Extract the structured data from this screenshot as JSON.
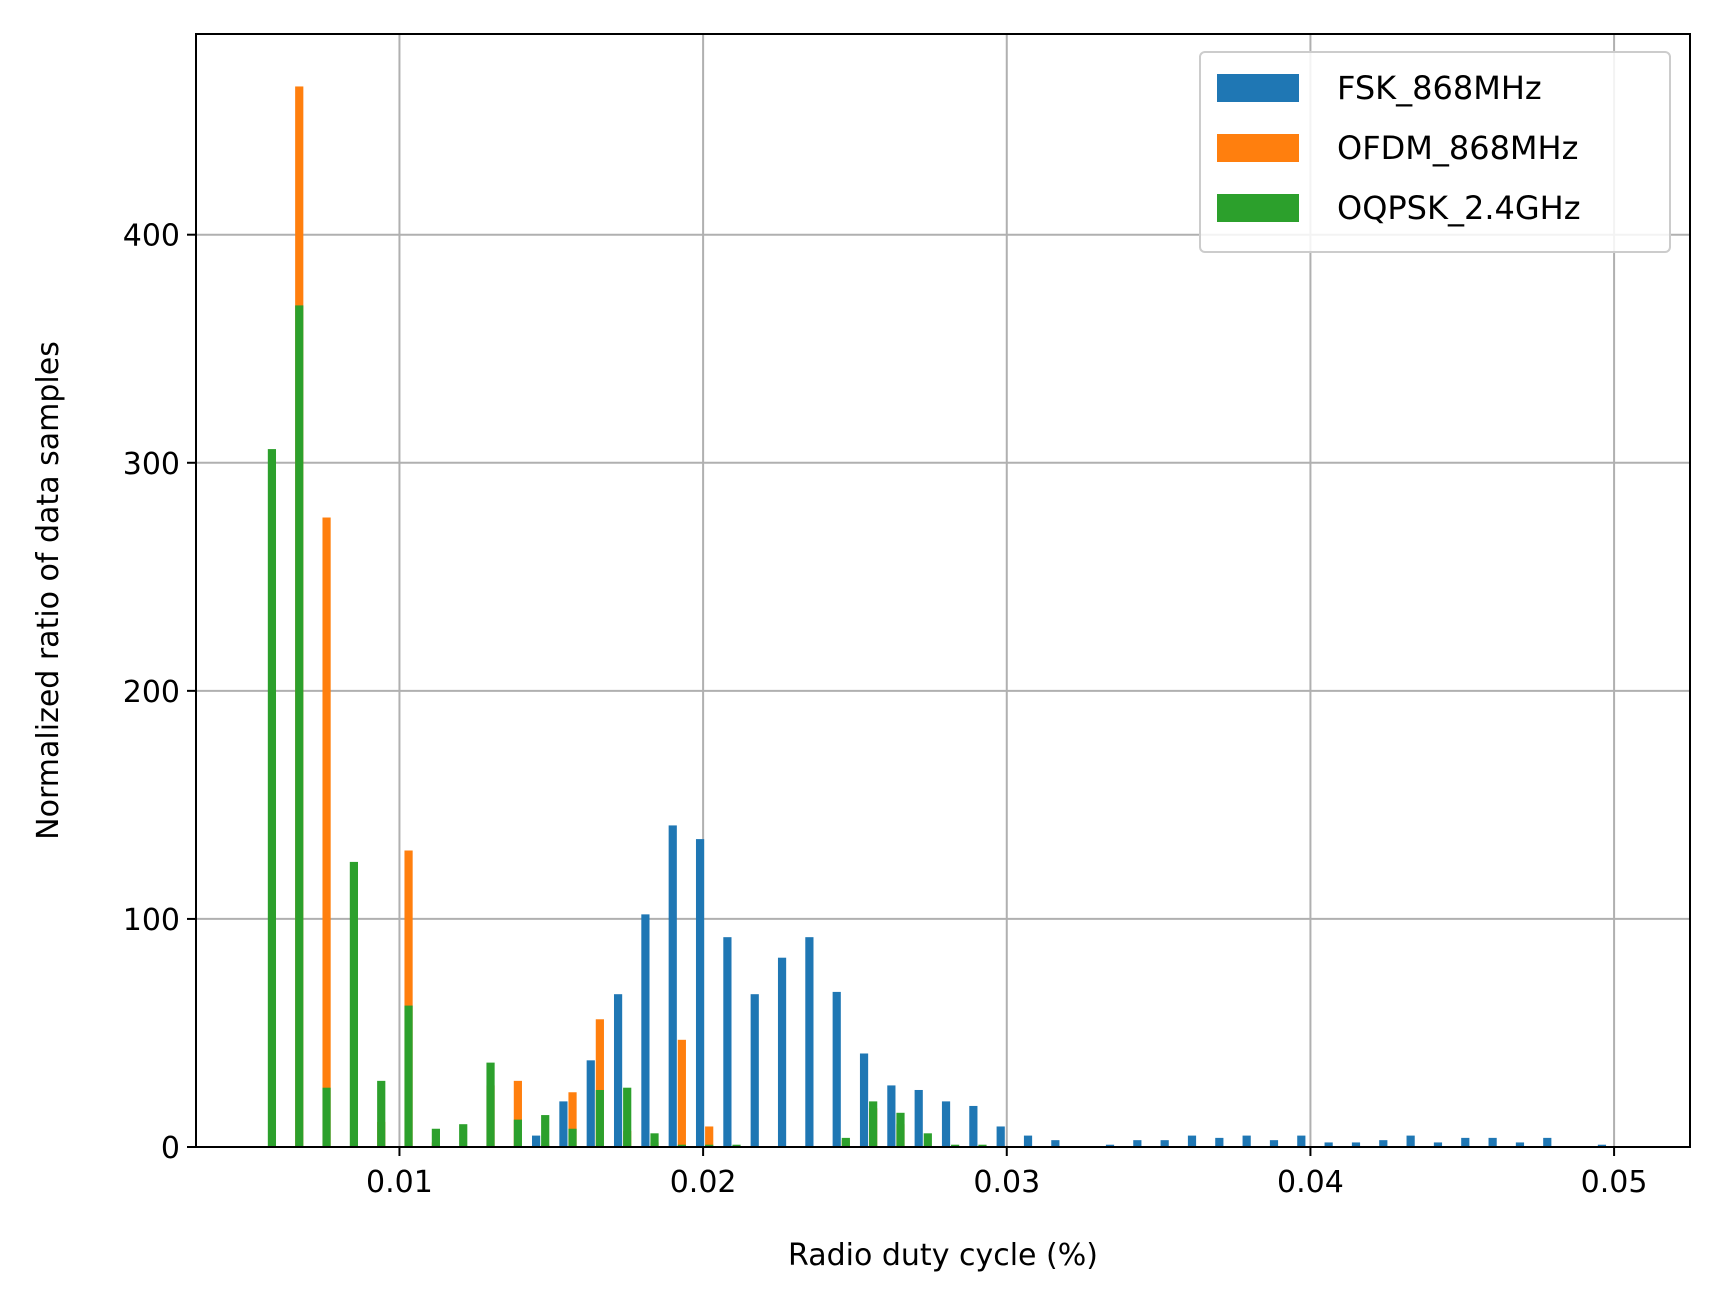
{
  "chart_data": {
    "type": "bar",
    "title": "",
    "xlabel": "Radio duty cycle (%)",
    "ylabel": "Normalized ratio of data samples",
    "xlim": [
      0.0033,
      0.0525
    ],
    "ylim": [
      0,
      488
    ],
    "xticks": [
      0.01,
      0.02,
      0.03,
      0.04,
      0.05
    ],
    "xtick_labels": [
      "0.01",
      "0.02",
      "0.03",
      "0.04",
      "0.05"
    ],
    "yticks": [
      0,
      100,
      200,
      300,
      400
    ],
    "ytick_labels": [
      "0",
      "100",
      "200",
      "300",
      "400"
    ],
    "grid": true,
    "legend_position": "top-right",
    "series": [
      {
        "name": "FSK_868MHz",
        "color": "#1f77b4",
        "points": [
          [
            0.0145,
            5
          ],
          [
            0.0154,
            20
          ],
          [
            0.0163,
            38
          ],
          [
            0.0172,
            67
          ],
          [
            0.0181,
            102
          ],
          [
            0.019,
            141
          ],
          [
            0.0199,
            135
          ],
          [
            0.0208,
            92
          ],
          [
            0.0217,
            67
          ],
          [
            0.0226,
            83
          ],
          [
            0.0235,
            92
          ],
          [
            0.0244,
            68
          ],
          [
            0.0253,
            41
          ],
          [
            0.0262,
            27
          ],
          [
            0.0271,
            25
          ],
          [
            0.028,
            20
          ],
          [
            0.0289,
            18
          ],
          [
            0.0298,
            9
          ],
          [
            0.0307,
            5
          ],
          [
            0.0316,
            3
          ],
          [
            0.0334,
            1
          ],
          [
            0.0343,
            3
          ],
          [
            0.0352,
            3
          ],
          [
            0.0361,
            5
          ],
          [
            0.037,
            4
          ],
          [
            0.0379,
            5
          ],
          [
            0.0388,
            3
          ],
          [
            0.0397,
            5
          ],
          [
            0.0406,
            2
          ],
          [
            0.0415,
            2
          ],
          [
            0.0424,
            3
          ],
          [
            0.0433,
            5
          ],
          [
            0.0442,
            2
          ],
          [
            0.0451,
            4
          ],
          [
            0.046,
            4
          ],
          [
            0.0469,
            2
          ],
          [
            0.0478,
            4
          ],
          [
            0.0496,
            1
          ]
        ]
      },
      {
        "name": "OFDM_868MHz",
        "color": "#ff7f0e",
        "points": [
          [
            0.0067,
            465
          ],
          [
            0.0076,
            276
          ],
          [
            0.0085,
            0.5
          ],
          [
            0.0094,
            11
          ],
          [
            0.0103,
            130
          ],
          [
            0.0112,
            2
          ],
          [
            0.013,
            27
          ],
          [
            0.0139,
            29
          ],
          [
            0.0148,
            1
          ],
          [
            0.0157,
            24
          ],
          [
            0.0166,
            56
          ],
          [
            0.0175,
            7
          ],
          [
            0.0184,
            2
          ],
          [
            0.0193,
            47
          ],
          [
            0.0202,
            9
          ],
          [
            0.0247,
            3
          ],
          [
            0.0256,
            17
          ],
          [
            0.0265,
            10
          ],
          [
            0.0274,
            0.5
          ]
        ]
      },
      {
        "name": "OQPSK_2.4GHz",
        "color": "#2ca02c",
        "points": [
          [
            0.0058,
            306
          ],
          [
            0.0067,
            369
          ],
          [
            0.0076,
            26
          ],
          [
            0.0085,
            125
          ],
          [
            0.0094,
            29
          ],
          [
            0.0103,
            62
          ],
          [
            0.0112,
            8
          ],
          [
            0.0121,
            10
          ],
          [
            0.013,
            37
          ],
          [
            0.0139,
            12
          ],
          [
            0.0148,
            14
          ],
          [
            0.0157,
            8
          ],
          [
            0.0166,
            25
          ],
          [
            0.0175,
            26
          ],
          [
            0.0184,
            6
          ],
          [
            0.0193,
            1
          ],
          [
            0.0202,
            1
          ],
          [
            0.0211,
            1
          ],
          [
            0.0247,
            4
          ],
          [
            0.0256,
            20
          ],
          [
            0.0265,
            15
          ],
          [
            0.0274,
            6
          ],
          [
            0.0283,
            1
          ],
          [
            0.0292,
            1
          ]
        ]
      }
    ]
  }
}
